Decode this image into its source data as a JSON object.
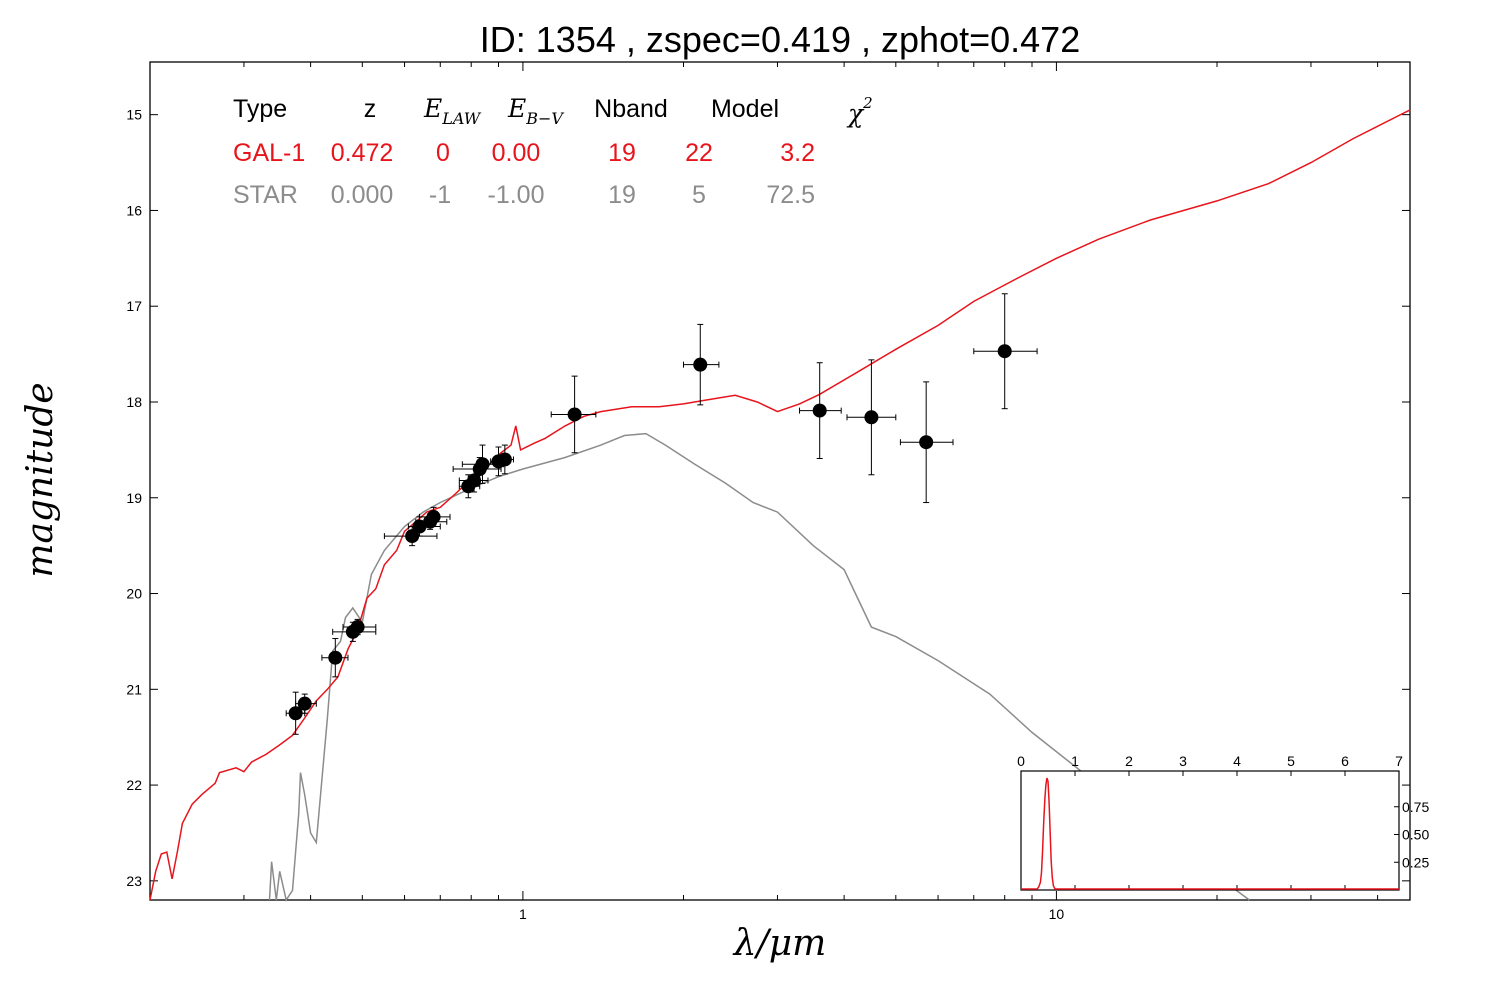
{
  "chart_data": {
    "type": "scatter",
    "title": "ID:  1354  , zspec=0.419 , zphot=0.472",
    "xlabel": "λ/μm",
    "ylabel": "magnitude",
    "xscale": "log",
    "xlim": [
      0.2,
      46
    ],
    "ylim": [
      23.2,
      14.45
    ],
    "y_inverted": true,
    "yticks": [
      "15",
      "16",
      "17",
      "18",
      "19",
      "20",
      "21",
      "22",
      "23"
    ],
    "xticks": [
      "1",
      "10"
    ],
    "grid": false,
    "colors": {
      "galaxy": "#e8141c",
      "star": "#8c8c8c",
      "points": "#000000"
    },
    "fit_table": {
      "headers": {
        "type": "Type",
        "z": "z",
        "elaw": "E",
        "elaw_sub": "LAW",
        "ebv": "E",
        "ebv_sub": "B−V",
        "nband": "Nband",
        "model": "Model",
        "chi": "χ",
        "chi_sup": "2"
      },
      "rows": [
        {
          "type": "GAL-1",
          "z": "0.472",
          "elaw": "0",
          "ebv": "0.00",
          "nband": "19",
          "model": "22",
          "chi2": "3.2",
          "color": "#e8141c"
        },
        {
          "type": "STAR",
          "z": "0.000",
          "elaw": "-1",
          "ebv": "-1.00",
          "nband": "19",
          "model": "5",
          "chi2": "72.5",
          "color": "#8c8c8c"
        }
      ]
    },
    "observations": [
      {
        "x": 0.375,
        "y": 21.25,
        "xerr": [
          0.36,
          0.39
        ],
        "yerr": 0.22
      },
      {
        "x": 0.39,
        "y": 21.15,
        "xerr": [
          0.375,
          0.41
        ],
        "yerr": 0.1
      },
      {
        "x": 0.445,
        "y": 20.67,
        "xerr": [
          0.42,
          0.47
        ],
        "yerr": 0.2
      },
      {
        "x": 0.48,
        "y": 20.4,
        "xerr": [
          0.44,
          0.53
        ],
        "yerr": 0.1
      },
      {
        "x": 0.49,
        "y": 20.35,
        "xerr": [
          0.46,
          0.53
        ],
        "yerr": 0.08
      },
      {
        "x": 0.62,
        "y": 19.4,
        "xerr": [
          0.55,
          0.69
        ],
        "yerr": 0.1
      },
      {
        "x": 0.64,
        "y": 19.3,
        "xerr": [
          0.61,
          0.7
        ],
        "yerr": 0.1
      },
      {
        "x": 0.67,
        "y": 19.25,
        "xerr": [
          0.63,
          0.72
        ],
        "yerr": 0.08
      },
      {
        "x": 0.68,
        "y": 19.2,
        "xerr": [
          0.64,
          0.73
        ],
        "yerr": 0.1
      },
      {
        "x": 0.79,
        "y": 18.88,
        "xerr": [
          0.76,
          0.83
        ],
        "yerr": 0.12
      },
      {
        "x": 0.81,
        "y": 18.82,
        "xerr": [
          0.76,
          0.86
        ],
        "yerr": 0.12
      },
      {
        "x": 0.83,
        "y": 18.7,
        "xerr": [
          0.74,
          0.91
        ],
        "yerr": 0.12
      },
      {
        "x": 0.84,
        "y": 18.65,
        "xerr": [
          0.77,
          0.92
        ],
        "yerr": 0.2
      },
      {
        "x": 0.9,
        "y": 18.62,
        "xerr": [
          0.87,
          0.93
        ],
        "yerr": 0.15
      },
      {
        "x": 0.925,
        "y": 18.6,
        "xerr": [
          0.89,
          0.96
        ],
        "yerr": 0.15
      },
      {
        "x": 1.25,
        "y": 18.13,
        "xerr": [
          1.13,
          1.37
        ],
        "yerr": 0.4
      },
      {
        "x": 2.15,
        "y": 17.61,
        "xerr": [
          2.0,
          2.33
        ],
        "yerr": 0.42
      },
      {
        "x": 3.6,
        "y": 18.09,
        "xerr": [
          3.3,
          3.95
        ],
        "yerr": 0.5
      },
      {
        "x": 4.5,
        "y": 18.16,
        "xerr": [
          4.05,
          5.0
        ],
        "yerr": 0.6
      },
      {
        "x": 5.7,
        "y": 18.42,
        "xerr": [
          5.1,
          6.4
        ],
        "yerr": 0.63
      },
      {
        "x": 8.0,
        "y": 17.47,
        "xerr": [
          7.0,
          9.2
        ],
        "yerr": 0.6
      }
    ],
    "galaxy_model": [
      [
        0.2,
        23.2
      ],
      [
        0.205,
        22.9
      ],
      [
        0.21,
        22.72
      ],
      [
        0.215,
        22.7
      ],
      [
        0.22,
        22.98
      ],
      [
        0.225,
        22.7
      ],
      [
        0.23,
        22.4
      ],
      [
        0.24,
        22.2
      ],
      [
        0.25,
        22.1
      ],
      [
        0.265,
        21.98
      ],
      [
        0.27,
        21.87
      ],
      [
        0.29,
        21.82
      ],
      [
        0.3,
        21.86
      ],
      [
        0.31,
        21.76
      ],
      [
        0.33,
        21.68
      ],
      [
        0.35,
        21.58
      ],
      [
        0.37,
        21.48
      ],
      [
        0.39,
        21.3
      ],
      [
        0.41,
        21.12
      ],
      [
        0.43,
        21.0
      ],
      [
        0.45,
        20.87
      ],
      [
        0.47,
        20.58
      ],
      [
        0.49,
        20.38
      ],
      [
        0.51,
        20.05
      ],
      [
        0.53,
        19.95
      ],
      [
        0.55,
        19.7
      ],
      [
        0.58,
        19.55
      ],
      [
        0.6,
        19.35
      ],
      [
        0.63,
        19.25
      ],
      [
        0.66,
        19.15
      ],
      [
        0.7,
        19.1
      ],
      [
        0.75,
        18.95
      ],
      [
        0.8,
        18.8
      ],
      [
        0.85,
        18.7
      ],
      [
        0.9,
        18.55
      ],
      [
        0.95,
        18.45
      ],
      [
        0.97,
        18.25
      ],
      [
        0.99,
        18.5
      ],
      [
        1.05,
        18.43
      ],
      [
        1.1,
        18.38
      ],
      [
        1.2,
        18.25
      ],
      [
        1.3,
        18.15
      ],
      [
        1.4,
        18.1
      ],
      [
        1.6,
        18.05
      ],
      [
        1.8,
        18.05
      ],
      [
        2.0,
        18.02
      ],
      [
        2.2,
        17.98
      ],
      [
        2.5,
        17.93
      ],
      [
        2.75,
        18.0
      ],
      [
        3.0,
        18.1
      ],
      [
        3.3,
        18.02
      ],
      [
        3.6,
        17.92
      ],
      [
        4.2,
        17.7
      ],
      [
        5.0,
        17.45
      ],
      [
        6.0,
        17.2
      ],
      [
        7.0,
        16.95
      ],
      [
        8.5,
        16.7
      ],
      [
        10.0,
        16.5
      ],
      [
        12.0,
        16.3
      ],
      [
        15.0,
        16.1
      ],
      [
        20.0,
        15.9
      ],
      [
        25.0,
        15.72
      ],
      [
        30.0,
        15.5
      ],
      [
        36.0,
        15.25
      ],
      [
        46.0,
        14.95
      ]
    ],
    "star_model": [
      [
        0.335,
        23.2
      ],
      [
        0.338,
        22.8
      ],
      [
        0.345,
        23.2
      ],
      [
        0.35,
        22.9
      ],
      [
        0.36,
        23.2
      ],
      [
        0.37,
        23.1
      ],
      [
        0.38,
        22.3
      ],
      [
        0.383,
        21.87
      ],
      [
        0.39,
        22.1
      ],
      [
        0.4,
        22.5
      ],
      [
        0.41,
        22.6
      ],
      [
        0.43,
        21.3
      ],
      [
        0.44,
        20.6
      ],
      [
        0.455,
        20.5
      ],
      [
        0.465,
        20.25
      ],
      [
        0.48,
        20.15
      ],
      [
        0.5,
        20.3
      ],
      [
        0.52,
        19.8
      ],
      [
        0.55,
        19.55
      ],
      [
        0.6,
        19.3
      ],
      [
        0.65,
        19.15
      ],
      [
        0.7,
        19.05
      ],
      [
        0.8,
        18.9
      ],
      [
        0.9,
        18.78
      ],
      [
        1.0,
        18.7
      ],
      [
        1.2,
        18.58
      ],
      [
        1.4,
        18.45
      ],
      [
        1.55,
        18.35
      ],
      [
        1.7,
        18.33
      ],
      [
        1.85,
        18.45
      ],
      [
        2.1,
        18.65
      ],
      [
        2.4,
        18.85
      ],
      [
        2.7,
        19.05
      ],
      [
        3.0,
        19.15
      ],
      [
        3.5,
        19.5
      ],
      [
        4.0,
        19.75
      ],
      [
        4.2,
        20.0
      ],
      [
        4.5,
        20.35
      ],
      [
        5.0,
        20.45
      ],
      [
        6.0,
        20.7
      ],
      [
        7.5,
        21.05
      ],
      [
        9.0,
        21.45
      ],
      [
        12.0,
        22.0
      ],
      [
        15.0,
        22.45
      ],
      [
        20.0,
        22.95
      ],
      [
        23.0,
        23.2
      ]
    ],
    "inset": {
      "type": "line",
      "xlim": [
        0,
        7
      ],
      "ylim": [
        0,
        1.0
      ],
      "xticks": [
        "0",
        "1",
        "2",
        "3",
        "4",
        "5",
        "6",
        "7"
      ],
      "yticks": [
        "0.25",
        "0.50",
        "0.75"
      ],
      "pdz": [
        [
          0,
          0.0
        ],
        [
          0.2,
          0.0
        ],
        [
          0.3,
          0.0
        ],
        [
          0.33,
          0.02
        ],
        [
          0.36,
          0.06
        ],
        [
          0.38,
          0.15
        ],
        [
          0.4,
          0.35
        ],
        [
          0.42,
          0.6
        ],
        [
          0.44,
          0.8
        ],
        [
          0.46,
          0.93
        ],
        [
          0.48,
          1.0
        ],
        [
          0.5,
          0.97
        ],
        [
          0.52,
          0.78
        ],
        [
          0.54,
          0.5
        ],
        [
          0.56,
          0.25
        ],
        [
          0.58,
          0.1
        ],
        [
          0.6,
          0.03
        ],
        [
          0.63,
          0.0
        ],
        [
          7,
          0.0
        ]
      ]
    }
  }
}
